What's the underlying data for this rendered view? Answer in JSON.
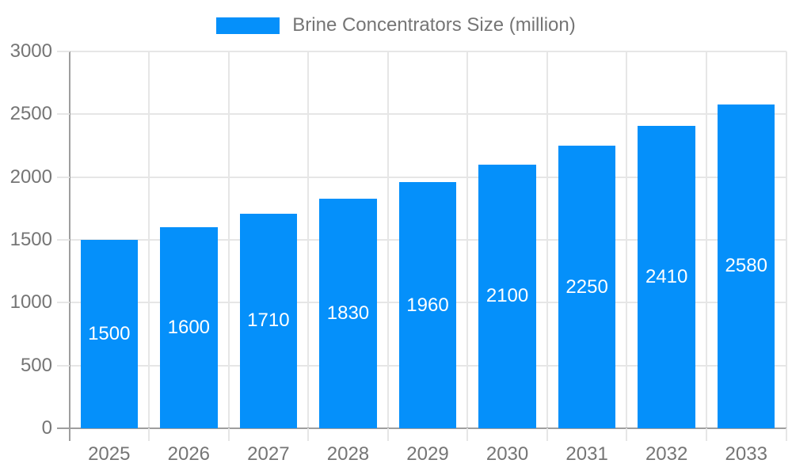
{
  "chart_data": {
    "type": "bar",
    "title": "Brine Concentrators Size (million)",
    "legend_position": "top",
    "categories": [
      "2025",
      "2026",
      "2027",
      "2028",
      "2029",
      "2030",
      "2031",
      "2032",
      "2033"
    ],
    "values": [
      1500,
      1600,
      1710,
      1830,
      1960,
      2100,
      2250,
      2410,
      2580
    ],
    "xlabel": "",
    "ylabel": "",
    "ylim": [
      0,
      3000
    ],
    "yticks": [
      0,
      500,
      1000,
      1500,
      2000,
      2500,
      3000
    ],
    "grid": true,
    "value_labels_position": "inside-center",
    "colors": {
      "bar": "#0590fa",
      "value_label": "#ffffff",
      "grid": "#e6e6e6",
      "axis": "#9e9e9e",
      "tick_text": "#757575",
      "legend_text": "#757575",
      "background": "#ffffff"
    }
  }
}
